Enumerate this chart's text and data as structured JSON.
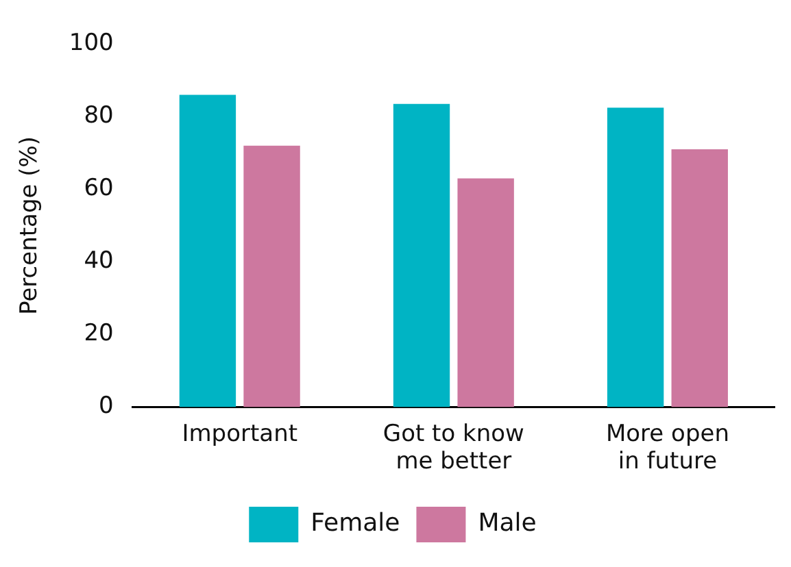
{
  "chart_data": {
    "type": "bar",
    "ylabel": "Percentage (%)",
    "categories": [
      "Important",
      "Got to know me better",
      "More open in future"
    ],
    "series": [
      {
        "name": "Female",
        "color": "#00b4c4",
        "values": [
          86,
          83.5,
          82.5
        ]
      },
      {
        "name": "Male",
        "color": "#cd789f",
        "values": [
          72,
          63,
          71
        ]
      }
    ],
    "ylim": [
      0,
      100
    ],
    "yticks": [
      0,
      20,
      40,
      60,
      80,
      100
    ],
    "grid": false,
    "legend": "bottom"
  }
}
